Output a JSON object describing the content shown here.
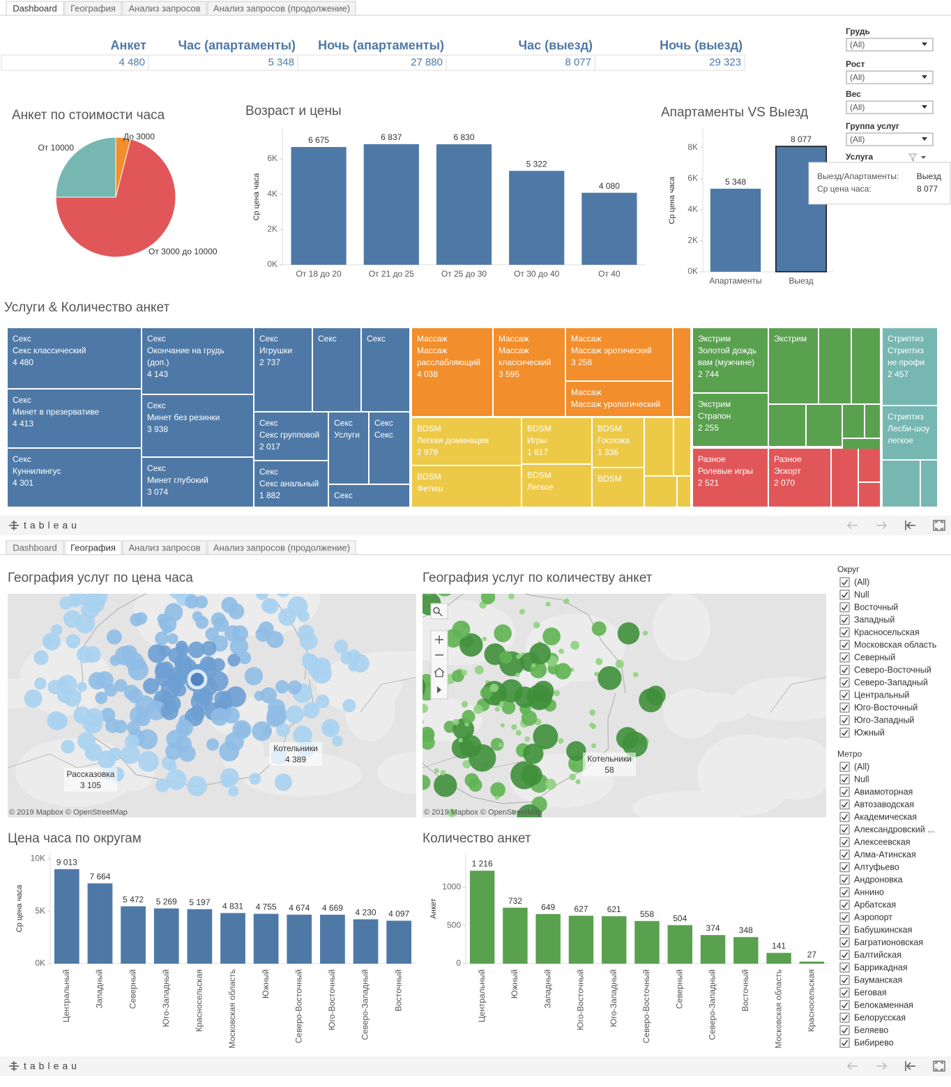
{
  "tabs": [
    "Dashboard",
    "География",
    "Анализ запросов",
    "Анализ запросов (продолжение)"
  ],
  "kpis": {
    "headers": [
      "Анкет",
      "Час (апартаменты)",
      "Ночь (апартаменты)",
      "Час (выезд)",
      "Ночь (выезд)"
    ],
    "values": [
      "4 480",
      "5 348",
      "27 880",
      "8 077",
      "29 323"
    ]
  },
  "filters_top": [
    {
      "label": "Грудь",
      "value": "(All)"
    },
    {
      "label": "Рост",
      "value": "(All)"
    },
    {
      "label": "Вес",
      "value": "(All)"
    },
    {
      "label": "Группа услуг",
      "value": "(All)"
    },
    {
      "label": "Услуга"
    }
  ],
  "tooltip": {
    "rows": [
      [
        "Выезд/Апартаменты:",
        "Выезд"
      ],
      [
        "Ср цена часа:",
        "8 077"
      ]
    ]
  },
  "chart_data": [
    {
      "type": "pie",
      "title": "Анкет по стоимости часа",
      "categories": [
        "До 3000",
        "От 3000 до 10000",
        "От 10000"
      ],
      "values": [
        4,
        71,
        25
      ],
      "colors": [
        "#f28e2b",
        "#e15759",
        "#76b7b2"
      ]
    },
    {
      "type": "bar",
      "title": "Возраст и цены",
      "y_label": "Ср цена часа",
      "categories": [
        "От 18 до 20",
        "От 21 до 25",
        "От 25 до 30",
        "От 30 до 40",
        "От 40"
      ],
      "values": [
        6675,
        6837,
        6830,
        5322,
        4080
      ],
      "value_labels": [
        "6 675",
        "6 837",
        "6 830",
        "5 322",
        "4 080"
      ],
      "color": "#4e79a7",
      "ylim": [
        0,
        7700
      ],
      "yticks": [
        {
          "value": 0,
          "label": "0K"
        },
        {
          "value": 2000,
          "label": "2K"
        },
        {
          "value": 4000,
          "label": "4K"
        },
        {
          "value": 6000,
          "label": "6K"
        }
      ],
      "grid": false
    },
    {
      "type": "bar",
      "title": "Апартаменты VS Выезд",
      "y_label": "Ср цена часа",
      "categories": [
        "Апартаменты",
        "Выезд"
      ],
      "values": [
        5348,
        8077
      ],
      "value_labels": [
        "5 348",
        "8 077"
      ],
      "color": "#4e79a7",
      "ylim": [
        0,
        9200
      ],
      "yticks": [
        {
          "value": 0,
          "label": "0K"
        },
        {
          "value": 2000,
          "label": "2K"
        },
        {
          "value": 4000,
          "label": "4K"
        },
        {
          "value": 6000,
          "label": "6K"
        },
        {
          "value": 8000,
          "label": "8K"
        }
      ],
      "grid": false
    },
    {
      "type": "treemap",
      "title": "Услуги & Количество анкет",
      "colors": [
        "#4e79a7",
        "#f28e2b",
        "#edc948",
        "#59a14f",
        "#e15759",
        "#76b7b2"
      ],
      "items": [
        {
          "category": "Секс",
          "name": "Секс классический",
          "value": 4480,
          "value_label": "4 480"
        },
        {
          "category": "Секс",
          "name": "Минет в презервативе",
          "value": 4413,
          "value_label": "4 413"
        },
        {
          "category": "Секс",
          "name": "Куннилингус",
          "value": 4301,
          "value_label": "4 301"
        },
        {
          "category": "Секс",
          "name": "Окончание на грудь (доп.)",
          "value": 4143,
          "value_label": "4 143"
        },
        {
          "category": "Секс",
          "name": "Минет без резинки",
          "value": 3938,
          "value_label": "3 938"
        },
        {
          "category": "Секс",
          "name": "Минет глубокий",
          "value": 3074,
          "value_label": "3 074"
        },
        {
          "category": "Секс",
          "name": "Игрушки",
          "value": 2737,
          "value_label": "2 737"
        },
        {
          "category": "Секс"
        },
        {
          "category": "Секс"
        },
        {
          "category": "Секс",
          "name": "Секс групповой",
          "value": 2017,
          "value_label": "2 017"
        },
        {
          "category": "Секс",
          "name": "Секс анальный",
          "value": 1882,
          "value_label": "1 882"
        },
        {
          "category": "Секс",
          "name": "Услуги"
        },
        {
          "category": "Секс",
          "name": "Секс"
        },
        {
          "category": "Секс"
        },
        {
          "category": "Массаж",
          "name": "Массаж расслабляющий",
          "value": 4038,
          "value_label": "4 038"
        },
        {
          "category": "Массаж",
          "name": "Массаж классический",
          "value": 3595,
          "value_label": "3 595"
        },
        {
          "category": "Массаж",
          "name": "Массаж эротический",
          "value": 3258,
          "value_label": "3 258"
        },
        {
          "category": "Массаж",
          "name": "Массаж урологический"
        },
        {
          "category": "BDSM",
          "name": "Легкая доминация",
          "value": 2979,
          "value_label": "2 979"
        },
        {
          "category": "BDSM",
          "name": "Фетиш"
        },
        {
          "category": "BDSM",
          "name": "Игры",
          "value": 1817,
          "value_label": "1 817"
        },
        {
          "category": "BDSM",
          "name": "Легкое"
        },
        {
          "category": "BDSM",
          "name": "Госпожа",
          "value": 1336,
          "value_label": "1 336"
        },
        {
          "category": "BDSM"
        },
        {
          "category": "Экстрим",
          "name": "Золотой дождь вам (мужчине)",
          "value": 2744,
          "value_label": "2 744"
        },
        {
          "category": "Экстрим",
          "name": "Страпон",
          "value": 2255,
          "value_label": "2 255"
        },
        {
          "category": "Экстрим"
        },
        {
          "category": "Разное",
          "name": "Ролевые игры",
          "value": 2521,
          "value_label": "2 521"
        },
        {
          "category": "Разное",
          "name": "Эскорт",
          "value": 2070,
          "value_label": "2 070"
        },
        {
          "category": "Стриптиз",
          "name": "Стриптиз не профи",
          "value": 2457,
          "value_label": "2 457"
        },
        {
          "category": "Стриптиз",
          "name": "Лесби-шоу легкое"
        }
      ]
    },
    {
      "type": "bar",
      "title": "Цена часа по округам",
      "y_label": "Ср цена часа",
      "categories": [
        "Центральный",
        "Западный",
        "Северный",
        "Юго-Западный",
        "Красносельская",
        "Московская область",
        "Южный",
        "Северо-Восточный",
        "Юго-Восточный",
        "Северо-Западный",
        "Восточный"
      ],
      "values": [
        9013,
        7664,
        5472,
        5269,
        5197,
        4831,
        4755,
        4674,
        4669,
        4230,
        4097
      ],
      "value_labels": [
        "9 013",
        "7 664",
        "5 472",
        "5 269",
        "5 197",
        "4 831",
        "4 755",
        "4 674",
        "4 669",
        "4 230",
        "4 097"
      ],
      "color": "#4e79a7",
      "ylim": [
        0,
        10500
      ],
      "yticks": [
        {
          "value": 0,
          "label": "0K"
        },
        {
          "value": 5000,
          "label": "5K"
        },
        {
          "value": 10000,
          "label": "10K"
        }
      ],
      "grid": false
    },
    {
      "type": "bar",
      "title": "Количество анкет",
      "y_label": "Анкет",
      "categories": [
        "Центральный",
        "Южный",
        "Западный",
        "Юго-Восточный",
        "Юго-Западный",
        "Северо-Восточный",
        "Северный",
        "Северо-Западный",
        "Восточный",
        "Московская область",
        "Красносельская"
      ],
      "values": [
        1216,
        732,
        649,
        627,
        621,
        558,
        504,
        374,
        348,
        141,
        27
      ],
      "value_labels": [
        "1 216",
        "732",
        "649",
        "627",
        "621",
        "558",
        "504",
        "374",
        "348",
        "141",
        "27"
      ],
      "color": "#59a14f",
      "ylim": [
        0,
        1440
      ],
      "yticks": [
        0,
        500,
        1000
      ],
      "grid": false
    }
  ],
  "maps": [
    {
      "title": "География услуг по цена часа",
      "labels": [
        {
          "name": "Рассказовка",
          "value": "3 105"
        },
        {
          "name": "Котельники",
          "value": "4 389"
        }
      ],
      "attribution": "© 2019 Mapbox © OpenStreetMap"
    },
    {
      "title": "География услуг по количеству анкет",
      "labels": [
        {
          "name": "Котельники",
          "value": "58"
        }
      ],
      "attribution": "© 2019 Mapbox © OpenStreetMap"
    }
  ],
  "filters_bottom": [
    {
      "title": "Округ",
      "items": [
        "(All)",
        "Null",
        "Восточный",
        "Западный",
        "Красносельская",
        "Московская область",
        "Северный",
        "Северо-Восточный",
        "Северо-Западный",
        "Центральный",
        "Юго-Восточный",
        "Юго-Западный",
        "Южный"
      ]
    },
    {
      "title": "Метро",
      "items": [
        "(All)",
        "Null",
        "Авиамоторная",
        "Автозаводская",
        "Академическая",
        "Александровский ...",
        "Алексеевская",
        "Алма-Атинская",
        "Алтуфьево",
        "Андроновка",
        "Аннино",
        "Арбатская",
        "Аэропорт",
        "Бабушкинская",
        "Багратионовская",
        "Балтийская",
        "Баррикадная",
        "Бауманская",
        "Беговая",
        "Белокаменная",
        "Белорусская",
        "Беляево",
        "Бибирево"
      ]
    }
  ],
  "footer": {
    "logo": "tableau"
  }
}
